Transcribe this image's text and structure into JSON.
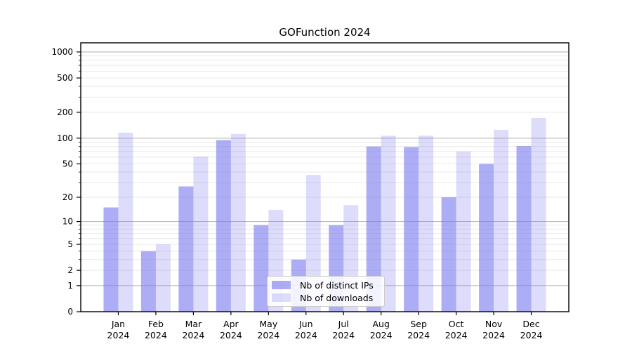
{
  "page": {
    "title": "GOFunction 2024"
  },
  "chart_data": {
    "type": "bar",
    "title": "GOFunction 2024",
    "categories": [
      "Jan",
      "Feb",
      "Mar",
      "Apr",
      "May",
      "Jun",
      "Jul",
      "Aug",
      "Sep",
      "Oct",
      "Nov",
      "Dec"
    ],
    "category_year": "2024",
    "series": [
      {
        "name": "Nb of distinct IPs",
        "color": "rgba(119,119,238,0.6)",
        "values": [
          15,
          4,
          27,
          95,
          9,
          3,
          9,
          80,
          79,
          20,
          50,
          81
        ]
      },
      {
        "name": "Nb of downloads",
        "color": "rgba(119,119,238,0.25)",
        "values": [
          116,
          5,
          61,
          112,
          14,
          37,
          16,
          107,
          107,
          70,
          125,
          172
        ]
      }
    ],
    "yscale": "log1p",
    "ylim": [
      0,
      1275
    ],
    "yticks": [
      0,
      1,
      2,
      5,
      10,
      20,
      50,
      100,
      200,
      500,
      1000
    ],
    "grid": {
      "major_lines": [
        1,
        10,
        100,
        1000
      ],
      "minor_subs": [
        2,
        3,
        4,
        5,
        6,
        7,
        8,
        9
      ],
      "major_color": "#b2b2b2",
      "minor_color": "#e9e9e9"
    },
    "legend": {
      "position": "lower center"
    },
    "axis_color": "#000000",
    "tick_label_color": "#000000"
  }
}
